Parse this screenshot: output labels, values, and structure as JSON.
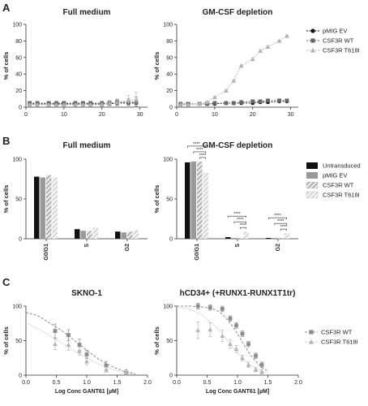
{
  "panel_letters": [
    "A",
    "B",
    "C"
  ],
  "colors": {
    "black": "#111111",
    "dark_gray": "#666666",
    "mid_gray": "#8c8c8c",
    "light_gray": "#b3b3b3",
    "very_light_gray": "#c8c8c8"
  },
  "chart_data": [
    {
      "id": "A1",
      "type": "line",
      "title": "Full medium",
      "ylabel": "% of cells",
      "xlabel": "",
      "xlim": [
        0,
        32
      ],
      "ylim": [
        0,
        100
      ],
      "x_ticks": [
        0,
        10,
        20,
        30
      ],
      "y_ticks": [
        0,
        20,
        40,
        60,
        80,
        100
      ],
      "x": [
        1,
        3,
        6,
        8,
        10,
        13,
        15,
        17,
        20,
        22,
        24,
        27,
        29
      ],
      "series": [
        {
          "name": "pMIG EV",
          "marker": "circle",
          "color": "#111111",
          "values": [
            4,
            4,
            4,
            4,
            4,
            4,
            4,
            4,
            4,
            4,
            5,
            5,
            5
          ],
          "err": [
            2,
            2,
            2,
            2,
            2,
            2,
            2,
            2,
            2,
            2,
            3,
            3,
            4
          ]
        },
        {
          "name": "CSF3R WT",
          "marker": "square",
          "color": "#666666",
          "values": [
            5,
            5,
            5,
            5,
            5,
            5,
            5,
            5,
            5,
            5,
            6,
            6,
            6
          ],
          "err": [
            2,
            2,
            2,
            2,
            2,
            2,
            2,
            2,
            2,
            3,
            3,
            4,
            6
          ]
        },
        {
          "name": "CSF3R T618I",
          "marker": "triangle",
          "color": "#b3b3b3",
          "values": [
            3,
            3,
            3,
            3,
            3,
            3,
            3,
            3,
            3,
            5,
            6,
            8,
            9
          ],
          "err": [
            1,
            1,
            1,
            1,
            1,
            1,
            1,
            1,
            2,
            3,
            4,
            6,
            9
          ]
        }
      ]
    },
    {
      "id": "A2",
      "type": "line",
      "title": "GM-CSF depletion",
      "ylabel": "% of cells",
      "xlabel": "",
      "xlim": [
        0,
        32
      ],
      "ylim": [
        0,
        100
      ],
      "x_ticks": [
        0,
        10,
        20,
        30
      ],
      "y_ticks": [
        0,
        20,
        40,
        60,
        80,
        100
      ],
      "x": [
        1,
        3,
        6,
        8,
        10,
        13,
        15,
        17,
        20,
        22,
        24,
        27,
        29
      ],
      "legend": "right",
      "series": [
        {
          "name": "pMIG EV",
          "marker": "circle",
          "color": "#111111",
          "values": [
            4,
            4,
            4,
            4,
            4,
            5,
            5,
            5,
            5,
            6,
            6,
            7,
            7
          ],
          "err": [
            1,
            1,
            1,
            1,
            1,
            1,
            1,
            1,
            1,
            1,
            1,
            1,
            1
          ]
        },
        {
          "name": "CSF3R WT",
          "marker": "square",
          "color": "#666666",
          "values": [
            4,
            4,
            4,
            4,
            5,
            5,
            5,
            6,
            7,
            7,
            8,
            8,
            8
          ],
          "err": [
            1,
            1,
            1,
            1,
            1,
            1,
            1,
            1,
            1,
            1,
            1,
            1,
            1
          ]
        },
        {
          "name": "CSF3R T618I",
          "marker": "triangle",
          "color": "#b3b3b3",
          "values": [
            3,
            3,
            4,
            6,
            12,
            20,
            32,
            50,
            58,
            68,
            73,
            80,
            86
          ],
          "err": [
            1,
            1,
            1,
            1,
            1,
            1,
            1,
            1,
            1,
            1,
            1,
            1,
            1
          ]
        }
      ]
    },
    {
      "id": "B1",
      "type": "bar",
      "title": "Full medium",
      "ylabel": "% of cells",
      "ylim": [
        0,
        100
      ],
      "y_ticks": [
        0,
        50,
        100
      ],
      "categories": [
        "G0/G1",
        "S",
        "G2"
      ],
      "series": [
        {
          "name": "Untransduced",
          "fill": "black",
          "values": [
            78,
            12,
            9
          ]
        },
        {
          "name": "pMIG EV",
          "fill": "gray",
          "values": [
            77,
            10,
            8
          ]
        },
        {
          "name": "CSF3R WT",
          "fill": "hatch",
          "values": [
            80,
            10,
            9
          ]
        },
        {
          "name": "CSF3R T618I",
          "fill": "hatch-light",
          "values": [
            77,
            14,
            11
          ]
        }
      ]
    },
    {
      "id": "B2",
      "type": "bar",
      "title": "GM-CSF depletion",
      "ylabel": "% of cells",
      "ylim": [
        0,
        100
      ],
      "y_ticks": [
        0,
        50,
        100
      ],
      "categories": [
        "G0/G1",
        "S",
        "G2"
      ],
      "legend": "right",
      "series": [
        {
          "name": "Untransduced",
          "fill": "black",
          "values": [
            96,
            2,
            1
          ]
        },
        {
          "name": "pMIG EV",
          "fill": "gray",
          "values": [
            97,
            1,
            1
          ]
        },
        {
          "name": "CSF3R WT",
          "fill": "hatch",
          "values": [
            97,
            1,
            1
          ]
        },
        {
          "name": "CSF3R T618I",
          "fill": "hatch-light",
          "values": [
            83,
            9,
            7
          ]
        }
      ],
      "significance": "****"
    },
    {
      "id": "C1",
      "type": "scatter",
      "title": "SKNO-1",
      "ylabel": "% of cells",
      "xlabel": "Log Conc GANT61 [µM]",
      "xlim": [
        0,
        2.0
      ],
      "ylim": [
        0,
        100
      ],
      "x_ticks": [
        0.0,
        0.5,
        1.0,
        1.5,
        2.0
      ],
      "y_ticks": [
        0,
        50,
        100
      ],
      "series": [
        {
          "name": "CSF3R WT",
          "marker": "square",
          "color": "#8c8c8c",
          "x": [
            0.48,
            0.7,
            0.88,
            1.0,
            1.32,
            1.65
          ],
          "values": [
            64,
            58,
            44,
            30,
            14,
            3
          ],
          "err": [
            10,
            8,
            8,
            6,
            6,
            5
          ],
          "fit": "dashed",
          "fit_x": [
            0.0,
            0.2,
            0.4,
            0.6,
            0.8,
            1.0,
            1.2,
            1.4,
            1.6,
            1.8
          ],
          "fit_y": [
            91,
            86,
            75,
            64,
            50,
            36,
            23,
            13,
            6,
            2
          ]
        },
        {
          "name": "CSF3R T618I",
          "marker": "triangle",
          "color": "#b3b3b3",
          "x": [
            0.48,
            0.7,
            0.88,
            1.0,
            1.32,
            1.65
          ],
          "values": [
            45,
            44,
            35,
            20,
            8,
            4
          ],
          "err": [
            8,
            8,
            6,
            5,
            4,
            3
          ],
          "fit": "dotted",
          "fit_x": [
            0.0,
            0.2,
            0.4,
            0.6,
            0.8,
            1.0,
            1.2,
            1.4,
            1.6,
            1.8
          ],
          "fit_y": [
            76,
            67,
            57,
            46,
            35,
            25,
            16,
            9,
            4,
            1
          ]
        }
      ]
    },
    {
      "id": "C2",
      "type": "scatter",
      "title": "hCD34+ (+RUNX1-RUNX1T1tr)",
      "ylabel": "% of cells",
      "xlabel": "Log Conc GANT61 [µM]",
      "xlim": [
        0,
        2.0
      ],
      "ylim": [
        0,
        100
      ],
      "x_ticks": [
        0.0,
        0.5,
        1.0,
        1.5,
        2.0
      ],
      "y_ticks": [
        0,
        50,
        100
      ],
      "legend": "right",
      "series": [
        {
          "name": "CSF3R WT",
          "marker": "square",
          "color": "#8c8c8c",
          "x": [
            0.35,
            0.55,
            0.75,
            0.88,
            0.98,
            1.08,
            1.18,
            1.3,
            1.4
          ],
          "values": [
            100,
            98,
            96,
            82,
            72,
            60,
            45,
            28,
            15
          ],
          "err": [
            4,
            4,
            4,
            4,
            4,
            4,
            4,
            4,
            4
          ],
          "fit": "dashed",
          "fit_x": [
            0.0,
            0.2,
            0.4,
            0.6,
            0.7,
            0.8,
            0.9,
            1.0,
            1.1,
            1.2,
            1.3,
            1.4,
            1.5
          ],
          "fit_y": [
            100,
            100,
            99,
            96,
            92,
            84,
            73,
            60,
            45,
            31,
            20,
            11,
            6
          ]
        },
        {
          "name": "CSF3R T618I",
          "marker": "triangle",
          "color": "#b3b3b3",
          "x": [
            0.35,
            0.55,
            0.75,
            0.88,
            0.98,
            1.08,
            1.18,
            1.3,
            1.4
          ],
          "values": [
            65,
            66,
            57,
            45,
            38,
            25,
            15,
            8,
            5
          ],
          "err": [
            12,
            10,
            8,
            6,
            5,
            4,
            4,
            3,
            3
          ],
          "fit": "dotted",
          "fit_x": [
            0.0,
            0.2,
            0.4,
            0.6,
            0.7,
            0.8,
            0.9,
            1.0,
            1.1,
            1.2,
            1.3,
            1.4,
            1.5
          ],
          "fit_y": [
            99,
            96,
            88,
            74,
            65,
            54,
            43,
            32,
            23,
            15,
            10,
            6,
            3
          ]
        }
      ]
    }
  ]
}
